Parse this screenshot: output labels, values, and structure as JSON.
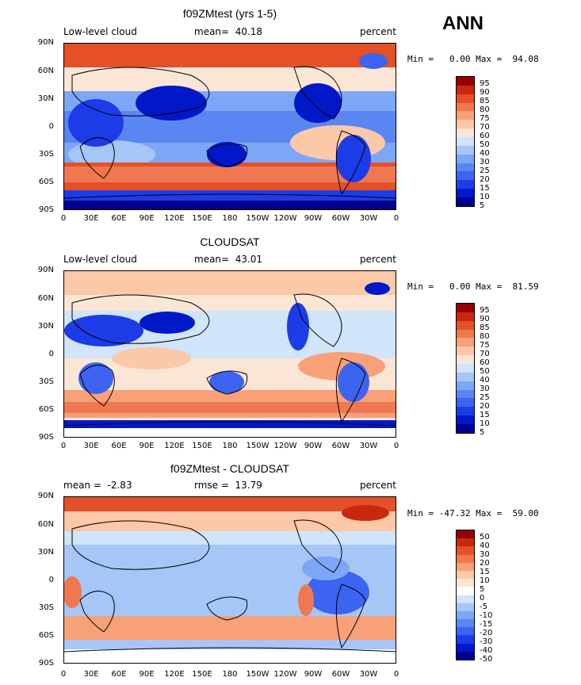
{
  "season": "ANN",
  "panels": [
    {
      "title": "f09ZMtest (yrs 1-5)",
      "left_text": "Low-level cloud",
      "mean_text": "mean=  40.18",
      "units": "percent",
      "minmax": "Min =   0.00 Max =  94.08",
      "legend_labels": [
        "95",
        "90",
        "85",
        "80",
        "75",
        "70",
        "60",
        "50",
        "40",
        "30",
        "25",
        "20",
        "15",
        "10",
        "5"
      ]
    },
    {
      "title": "CLOUDSAT",
      "left_text": "Low-level cloud",
      "mean_text": "mean=  43.01",
      "units": "percent",
      "minmax": "Min =   0.00 Max =  81.59",
      "legend_labels": [
        "95",
        "90",
        "85",
        "80",
        "75",
        "70",
        "60",
        "50",
        "40",
        "30",
        "25",
        "20",
        "15",
        "10",
        "5"
      ]
    },
    {
      "title": "f09ZMtest - CLOUDSAT",
      "left_text": "mean =  -2.83",
      "mean_text": "rmse =  13.79",
      "units": "percent",
      "minmax": "Min = -47.32 Max =  59.00",
      "legend_labels": [
        "50",
        "40",
        "30",
        "20",
        "15",
        "10",
        "5",
        "0",
        "-5",
        "-10",
        "-15",
        "-20",
        "-30",
        "-40",
        "-50"
      ]
    }
  ],
  "lat_ticks": [
    "90N",
    "60N",
    "30N",
    "0",
    "30S",
    "60S",
    "90S"
  ],
  "lon_ticks": [
    "0",
    "30E",
    "60E",
    "90E",
    "120E",
    "150E",
    "180",
    "150W",
    "120W",
    "90W",
    "60W",
    "30W",
    "0"
  ],
  "colors": {
    "abs_scale": [
      "#000090",
      "#0018c8",
      "#1c3ce8",
      "#3c64f0",
      "#5a86f4",
      "#7ea6f6",
      "#a6c6f8",
      "#d0e4fa",
      "#fbe6d6",
      "#fbc8a8",
      "#f8a078",
      "#f07850",
      "#e45028",
      "#c82810",
      "#960000"
    ],
    "diff_scale": [
      "#000090",
      "#0018c8",
      "#1c3ce8",
      "#3c64f0",
      "#5a86f4",
      "#7ea6f6",
      "#a6c6f8",
      "#d0e4fa",
      "#ffffff",
      "#fbe6d6",
      "#fbc8a8",
      "#f8a078",
      "#f07850",
      "#e45028",
      "#c82810",
      "#960000"
    ]
  }
}
